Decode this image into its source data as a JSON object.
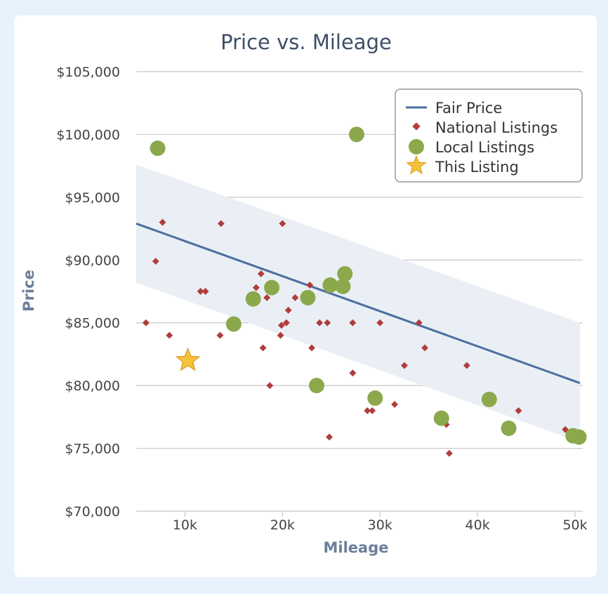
{
  "chart_data": {
    "type": "scatter",
    "title": "Price vs. Mileage",
    "xlabel": "Mileage",
    "ylabel": "Price",
    "xlim": [
      5000,
      50500
    ],
    "ylim": [
      70000,
      105000
    ],
    "x_ticks": [
      {
        "value": 10000,
        "label": "10k"
      },
      {
        "value": 20000,
        "label": "20k"
      },
      {
        "value": 30000,
        "label": "30k"
      },
      {
        "value": 40000,
        "label": "40k"
      },
      {
        "value": 50000,
        "label": "50k"
      }
    ],
    "y_ticks": [
      {
        "value": 70000,
        "label": "$70,000"
      },
      {
        "value": 75000,
        "label": "$75,000"
      },
      {
        "value": 80000,
        "label": "$80,000"
      },
      {
        "value": 85000,
        "label": "$85,000"
      },
      {
        "value": 90000,
        "label": "$90,000"
      },
      {
        "value": 95000,
        "label": "$95,000"
      },
      {
        "value": 100000,
        "label": "$100,000"
      },
      {
        "value": 105000,
        "label": "$105,000"
      }
    ],
    "grid": true,
    "legend": "top-right",
    "colors": {
      "fair_price": "#4a6fa0",
      "band": "#eaeff5",
      "national": "#b03d3d",
      "local": "#8ca84c",
      "this_listing": "#f5c23a"
    },
    "fair_price_band": {
      "x": [
        5000,
        50500
      ],
      "upper": [
        97600,
        85000
      ],
      "lower": [
        88200,
        75500
      ]
    },
    "series": [
      {
        "name": "Fair Price",
        "type": "line",
        "x": [
          5000,
          50500
        ],
        "y": [
          92900,
          80200
        ]
      },
      {
        "name": "National Listings",
        "type": "scatter",
        "marker": "diamond",
        "x": [
          6000,
          7000,
          7700,
          8400,
          11600,
          12100,
          13600,
          13700,
          17300,
          17400,
          17800,
          18000,
          18400,
          18700,
          19800,
          19900,
          20000,
          20400,
          20600,
          21300,
          22800,
          23000,
          23800,
          24600,
          24800,
          27200,
          27200,
          28700,
          29200,
          30000,
          31500,
          32500,
          34000,
          34600,
          36800,
          37100,
          38900,
          44200,
          49000
        ],
        "y": [
          85000,
          89900,
          93000,
          84000,
          87500,
          87500,
          84000,
          92900,
          87800,
          87000,
          88900,
          83000,
          87000,
          80000,
          84000,
          84800,
          92900,
          85000,
          86000,
          87000,
          88000,
          83000,
          85000,
          85000,
          75900,
          81000,
          85000,
          78000,
          78000,
          85000,
          78500,
          81600,
          85000,
          83000,
          76900,
          74600,
          81600,
          78000,
          76500
        ]
      },
      {
        "name": "Local Listings",
        "type": "scatter",
        "marker": "circle",
        "x": [
          7200,
          15000,
          17000,
          18900,
          22600,
          23500,
          24900,
          26200,
          26400,
          27600,
          29500,
          36300,
          41200,
          43200,
          49800,
          50400
        ],
        "y": [
          98900,
          84900,
          86900,
          87800,
          87000,
          80000,
          88000,
          87900,
          88900,
          100000,
          79000,
          77400,
          78900,
          76600,
          76000,
          75900
        ]
      },
      {
        "name": "This Listing",
        "type": "scatter",
        "marker": "star",
        "x": [
          10300
        ],
        "y": [
          82000
        ]
      }
    ]
  }
}
